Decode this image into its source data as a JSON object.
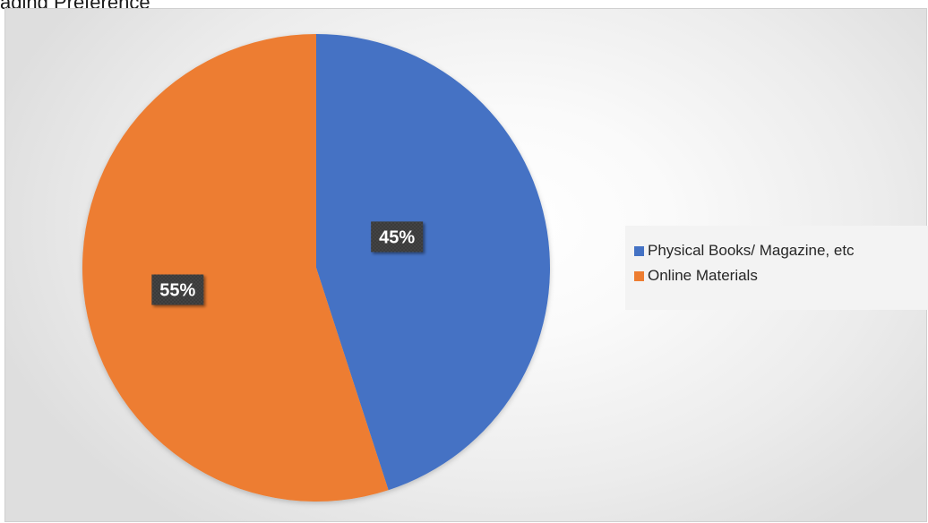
{
  "chart_data": {
    "type": "pie",
    "title": "ading Preference",
    "categories": [
      "Physical Books/ Magazine, etc",
      "Online Materials"
    ],
    "values": [
      45,
      55
    ],
    "data_labels": [
      "45%",
      "55%"
    ],
    "colors": [
      "#4472C4",
      "#ED7D31"
    ],
    "start_angle_deg": 0,
    "direction": "clockwise",
    "legend_position": "right"
  }
}
